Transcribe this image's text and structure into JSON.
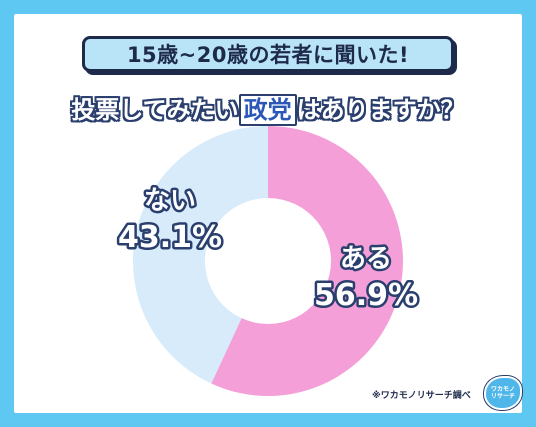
{
  "header": {
    "banner_text": "15歳~20歳の若者に聞いた!",
    "question_pre": "投票してみたい",
    "question_highlight": "政党",
    "question_post": "はありますか？"
  },
  "chart_data": {
    "type": "pie",
    "donut": true,
    "title": "",
    "slices": [
      {
        "label": "ある",
        "value": 56.9,
        "value_label": "56.9%",
        "color": "#f49fd8"
      },
      {
        "label": "ない",
        "value": 43.1,
        "value_label": "43.1%",
        "color": "#d7ebfa"
      }
    ],
    "start_angle": "top",
    "direction": "clockwise"
  },
  "footer": {
    "source_note": "※ワカモノリサーチ調べ",
    "logo_line1": "ワカモノ",
    "logo_line2": "リサーチ"
  }
}
